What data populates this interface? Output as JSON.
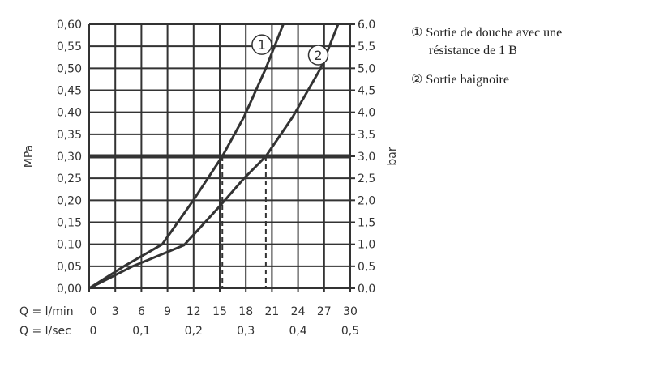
{
  "chart_data": {
    "type": "line",
    "ylabel_left": "MPa",
    "ylabel_right": "bar",
    "ylim": [
      0,
      0.6
    ],
    "xlim": [
      0,
      30
    ],
    "grid": true,
    "y_ticks_left": [
      "0,00",
      "0,05",
      "0,10",
      "0,15",
      "0,20",
      "0,25",
      "0,30",
      "0,35",
      "0,40",
      "0,45",
      "0,50",
      "0,55",
      "0,60"
    ],
    "y_ticks_right": [
      "0,0",
      "0,5",
      "1,0",
      "1,5",
      "2,0",
      "2,5",
      "3,0",
      "3,5",
      "4,0",
      "4,5",
      "5,0",
      "5,5",
      "6,0"
    ],
    "x_row1_label": "Q = l/min",
    "x_row1_ticks": [
      "0",
      "3",
      "6",
      "9",
      "12",
      "15",
      "18",
      "21",
      "24",
      "27",
      "30"
    ],
    "x_row2_label": "Q = l/sec",
    "x_row2_ticks": [
      "0",
      "0,1",
      "0,2",
      "0,3",
      "0,4",
      "0,5"
    ],
    "reference_line_y": 0.3,
    "dashed_x": [
      15.3,
      20.3
    ],
    "series": [
      {
        "name": "1",
        "x": [
          0,
          4,
          8.4,
          11.9,
          15.3,
          17.8,
          20.3,
          22.3
        ],
        "y": [
          0,
          0.05,
          0.1,
          0.198,
          0.3,
          0.39,
          0.5,
          0.6
        ]
      },
      {
        "name": "2",
        "x": [
          0,
          5,
          10.9,
          14.7,
          17.8,
          20.3,
          23.4,
          26.6,
          28.6
        ],
        "y": [
          0,
          0.05,
          0.098,
          0.18,
          0.25,
          0.3,
          0.39,
          0.5,
          0.6
        ]
      }
    ],
    "legend": [
      {
        "marker": "①",
        "text": "Sortie de douche avec une",
        "text2": "résistance de 1 B"
      },
      {
        "marker": "②",
        "text": "Sortie baignoire"
      }
    ]
  }
}
